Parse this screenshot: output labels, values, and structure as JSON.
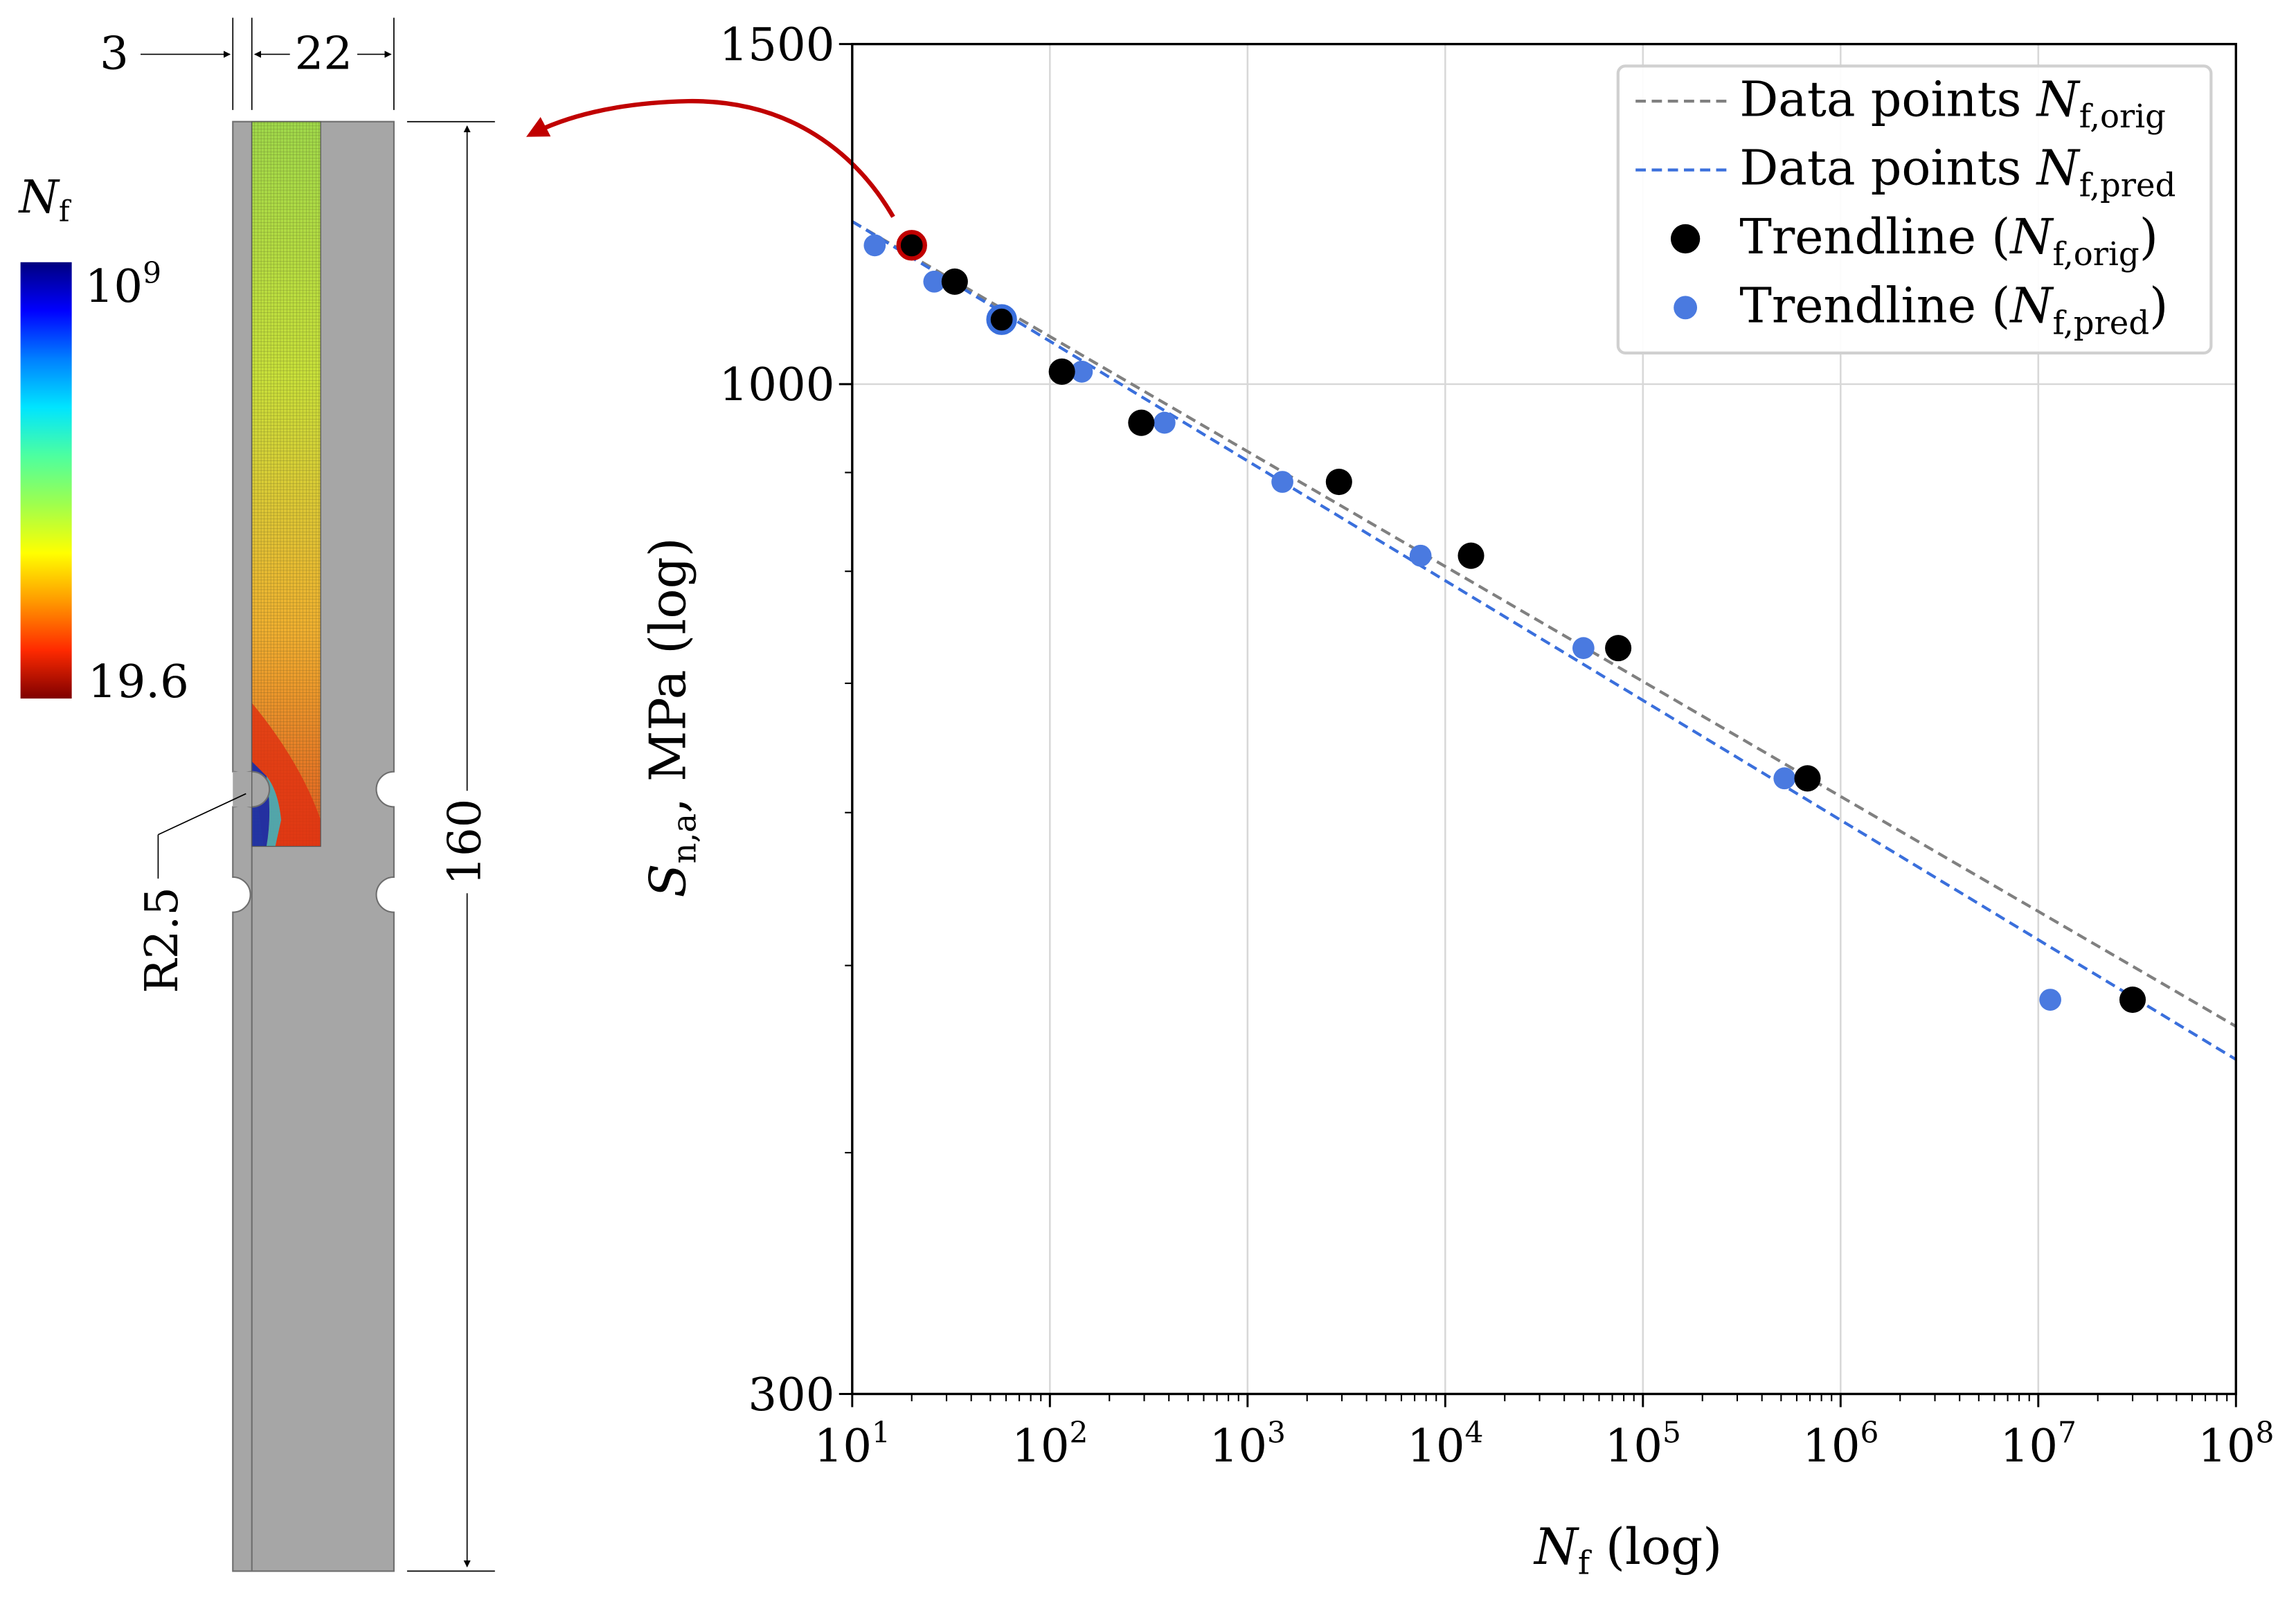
{
  "specimen": {
    "dim_thickness": "3",
    "dim_width": "22",
    "dim_length": "160",
    "notch_radius": "R2.5",
    "colorbar": {
      "label_main": "N",
      "label_sub": "f",
      "max_base": "10",
      "max_exp": "9",
      "min_label": "19.6",
      "colors": [
        "#00007f",
        "#0000ff",
        "#0080ff",
        "#00e5ff",
        "#4dff9f",
        "#9fff4d",
        "#ffff00",
        "#ff9900",
        "#ff2a00",
        "#7f0000"
      ]
    },
    "colors": {
      "body": "#a6a6a6",
      "outline": "#6e6e6e",
      "arrow": "#c00000"
    }
  },
  "chart_data": {
    "type": "scatter",
    "xscale": "log",
    "yscale": "log",
    "xlim": [
      10,
      100000000
    ],
    "ylim": [
      300,
      1500
    ],
    "grid": true,
    "legend_position": "top-right",
    "ytick_values": [
      300,
      1000,
      1500
    ],
    "ytick_labels": [
      "300",
      "1000",
      "1500"
    ],
    "xtick_values": [
      10,
      100,
      1000,
      10000,
      100000,
      1000000,
      10000000,
      100000000
    ],
    "xtick_labels": [
      {
        "base": "10",
        "exp": "1"
      },
      {
        "base": "10",
        "exp": "2"
      },
      {
        "base": "10",
        "exp": "3"
      },
      {
        "base": "10",
        "exp": "4"
      },
      {
        "base": "10",
        "exp": "5"
      },
      {
        "base": "10",
        "exp": "6"
      },
      {
        "base": "10",
        "exp": "7"
      },
      {
        "base": "10",
        "exp": "8"
      }
    ],
    "xlabel": {
      "var": "N",
      "sub": "f",
      "rest": " (log)"
    },
    "ylabel": {
      "var": "S",
      "sub": "n,a",
      "rest": ", MPa (log)"
    },
    "legend": [
      {
        "kind": "line",
        "color": "#808080",
        "text": "Data points ",
        "var": "N",
        "sub": "f,orig",
        "paren": false
      },
      {
        "kind": "line",
        "color": "#3a6fdc",
        "text": "Data points ",
        "var": "N",
        "sub": "f,pred",
        "paren": false
      },
      {
        "kind": "marker",
        "color": "#000000",
        "text": "Trendline ",
        "var": "N",
        "sub": "f,orig",
        "paren": true
      },
      {
        "kind": "marker",
        "color": "#4a7ae0",
        "text": "Trendline ",
        "var": "N",
        "sub": "f,pred",
        "paren": true
      }
    ],
    "series": [
      {
        "name": "N_f,orig points",
        "color": "#000000",
        "points": [
          {
            "x": 20,
            "y": 1180,
            "highlight": "#c00000"
          },
          {
            "x": 33,
            "y": 1130
          },
          {
            "x": 57,
            "y": 1080,
            "highlight": "#3a6fdc"
          },
          {
            "x": 115,
            "y": 1015
          },
          {
            "x": 290,
            "y": 955
          },
          {
            "x": 2900,
            "y": 890
          },
          {
            "x": 13500,
            "y": 815
          },
          {
            "x": 75000,
            "y": 730
          },
          {
            "x": 680000,
            "y": 625
          },
          {
            "x": 30000000,
            "y": 480
          }
        ]
      },
      {
        "name": "N_f,pred points",
        "color": "#4a7ae0",
        "points": [
          {
            "x": 13,
            "y": 1180
          },
          {
            "x": 26,
            "y": 1130
          },
          {
            "x": 145,
            "y": 1015
          },
          {
            "x": 380,
            "y": 955
          },
          {
            "x": 1500,
            "y": 890
          },
          {
            "x": 7500,
            "y": 815
          },
          {
            "x": 50000,
            "y": 730
          },
          {
            "x": 520000,
            "y": 625
          },
          {
            "x": 11500000,
            "y": 480
          }
        ]
      }
    ],
    "trendlines": [
      {
        "name": "orig",
        "color": "#808080",
        "x": [
          10,
          100000000
        ],
        "y": [
          1214,
          465
        ]
      },
      {
        "name": "pred",
        "color": "#3a6fdc",
        "x": [
          10,
          100000000
        ],
        "y": [
          1214,
          447
        ]
      }
    ]
  }
}
